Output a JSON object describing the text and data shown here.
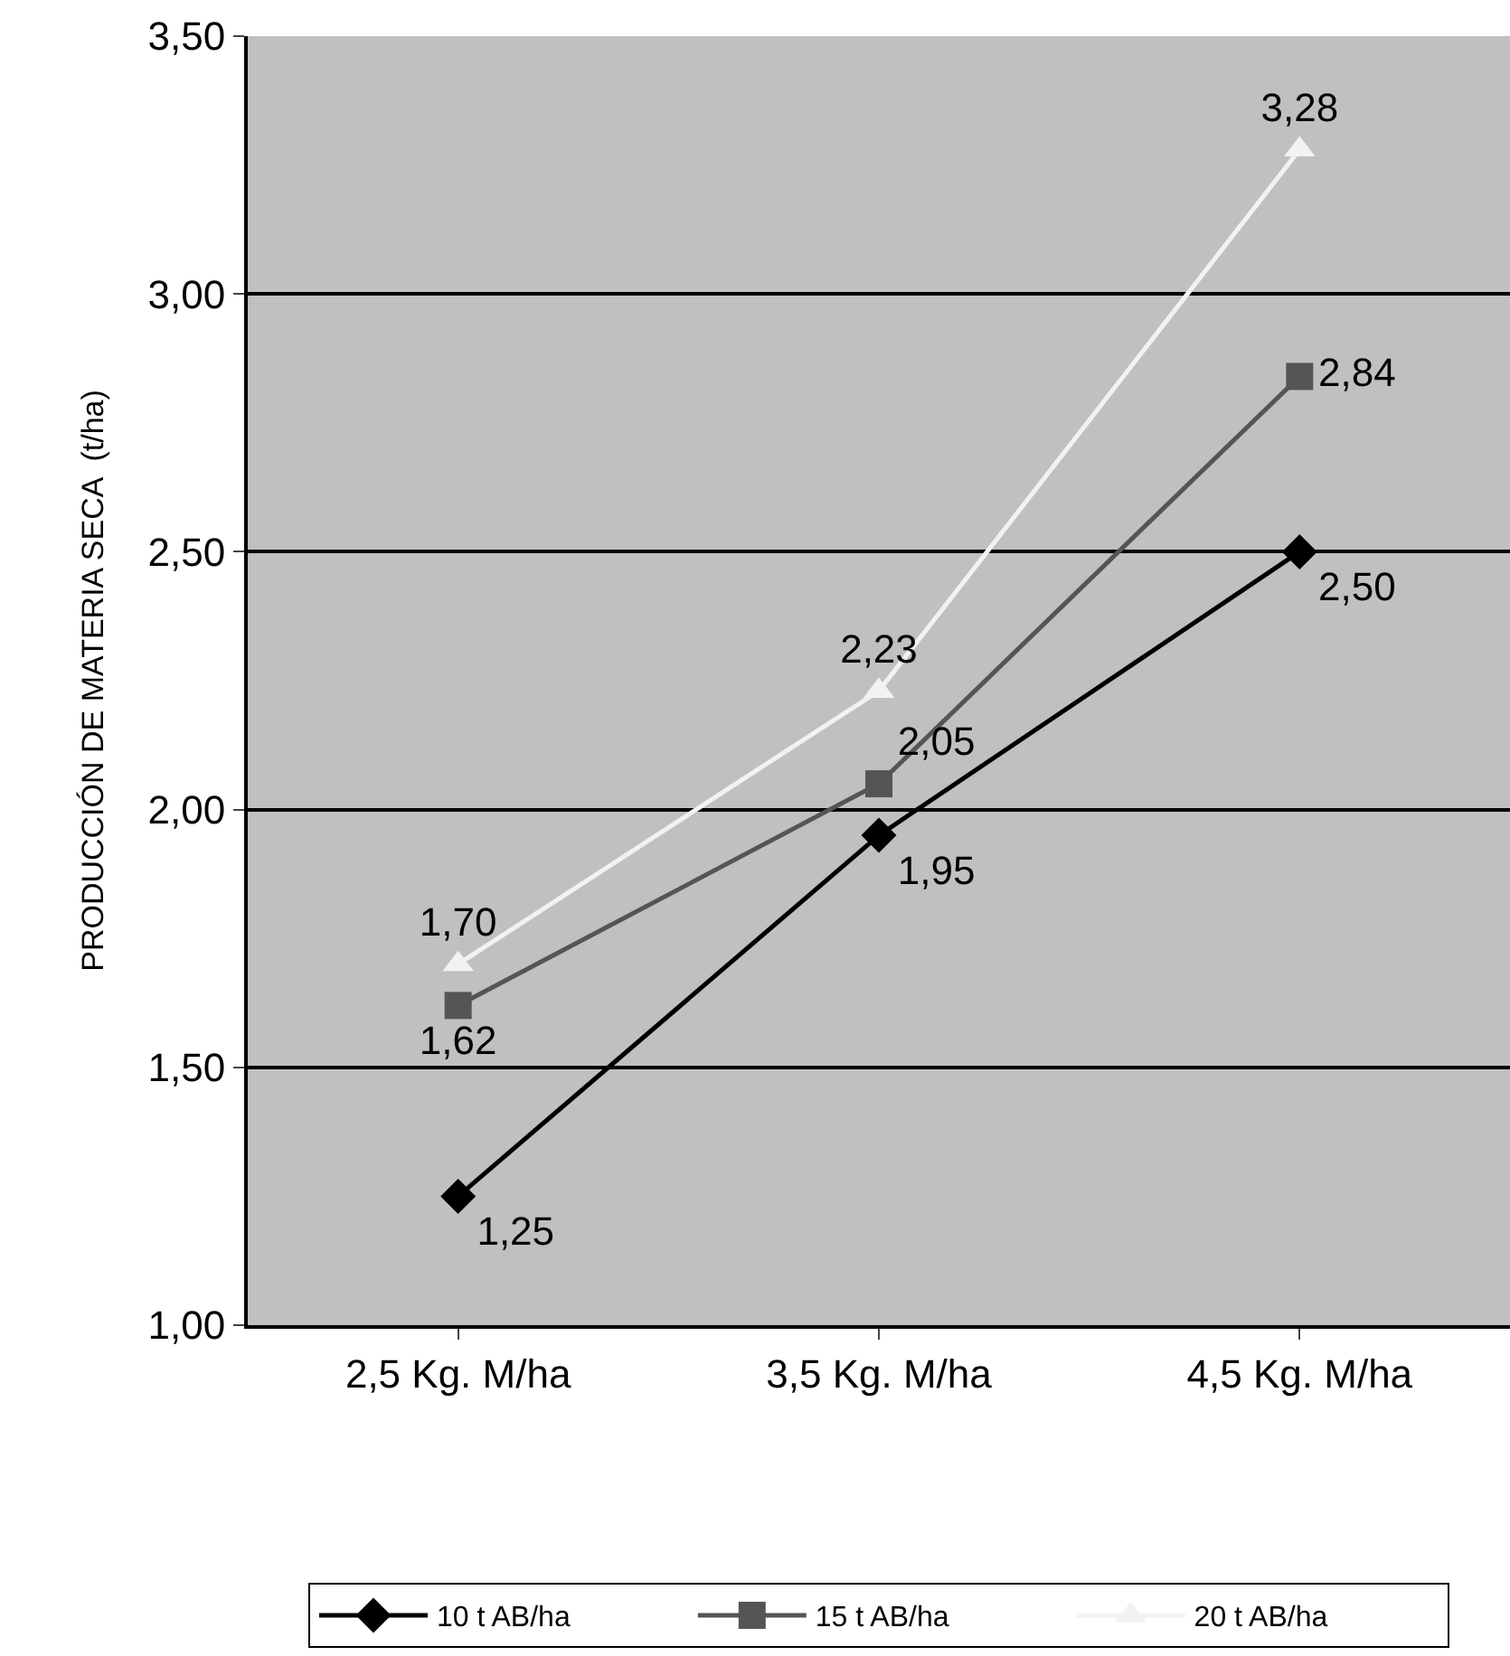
{
  "chart_data": {
    "type": "line",
    "ylabel": "PRODUCCIÓN DE MATERIA SECA  (t/ha)",
    "categories": [
      "2,5 Kg. M/ha",
      "3,5 Kg. M/ha",
      "4,5 Kg. M/ha"
    ],
    "series": [
      {
        "name": "10 t AB/ha",
        "color": "#000000",
        "marker": "diamond",
        "values": [
          1.25,
          1.95,
          2.5
        ],
        "value_labels": [
          "1,25",
          "1,95",
          "2,50"
        ]
      },
      {
        "name": "15 t AB/ha",
        "color": "#555555",
        "marker": "square",
        "values": [
          1.62,
          2.05,
          2.84
        ],
        "value_labels": [
          "1,62",
          "2,05",
          "2,84"
        ]
      },
      {
        "name": "20 t AB/ha",
        "color": "#f2f2f2",
        "marker": "triangle",
        "values": [
          1.7,
          2.23,
          3.28
        ],
        "value_labels": [
          "1,70",
          "2,23",
          "3,28"
        ]
      }
    ],
    "ylim": [
      1,
      3.5
    ],
    "yticks": [
      {
        "value": 1,
        "label": "1,00"
      },
      {
        "value": 1.5,
        "label": "1,50"
      },
      {
        "value": 2,
        "label": "2,00"
      },
      {
        "value": 2.5,
        "label": "2,50"
      },
      {
        "value": 3,
        "label": "3,00"
      },
      {
        "value": 3.5,
        "label": "3,50"
      }
    ],
    "grid": "y",
    "legend": "bottom"
  }
}
